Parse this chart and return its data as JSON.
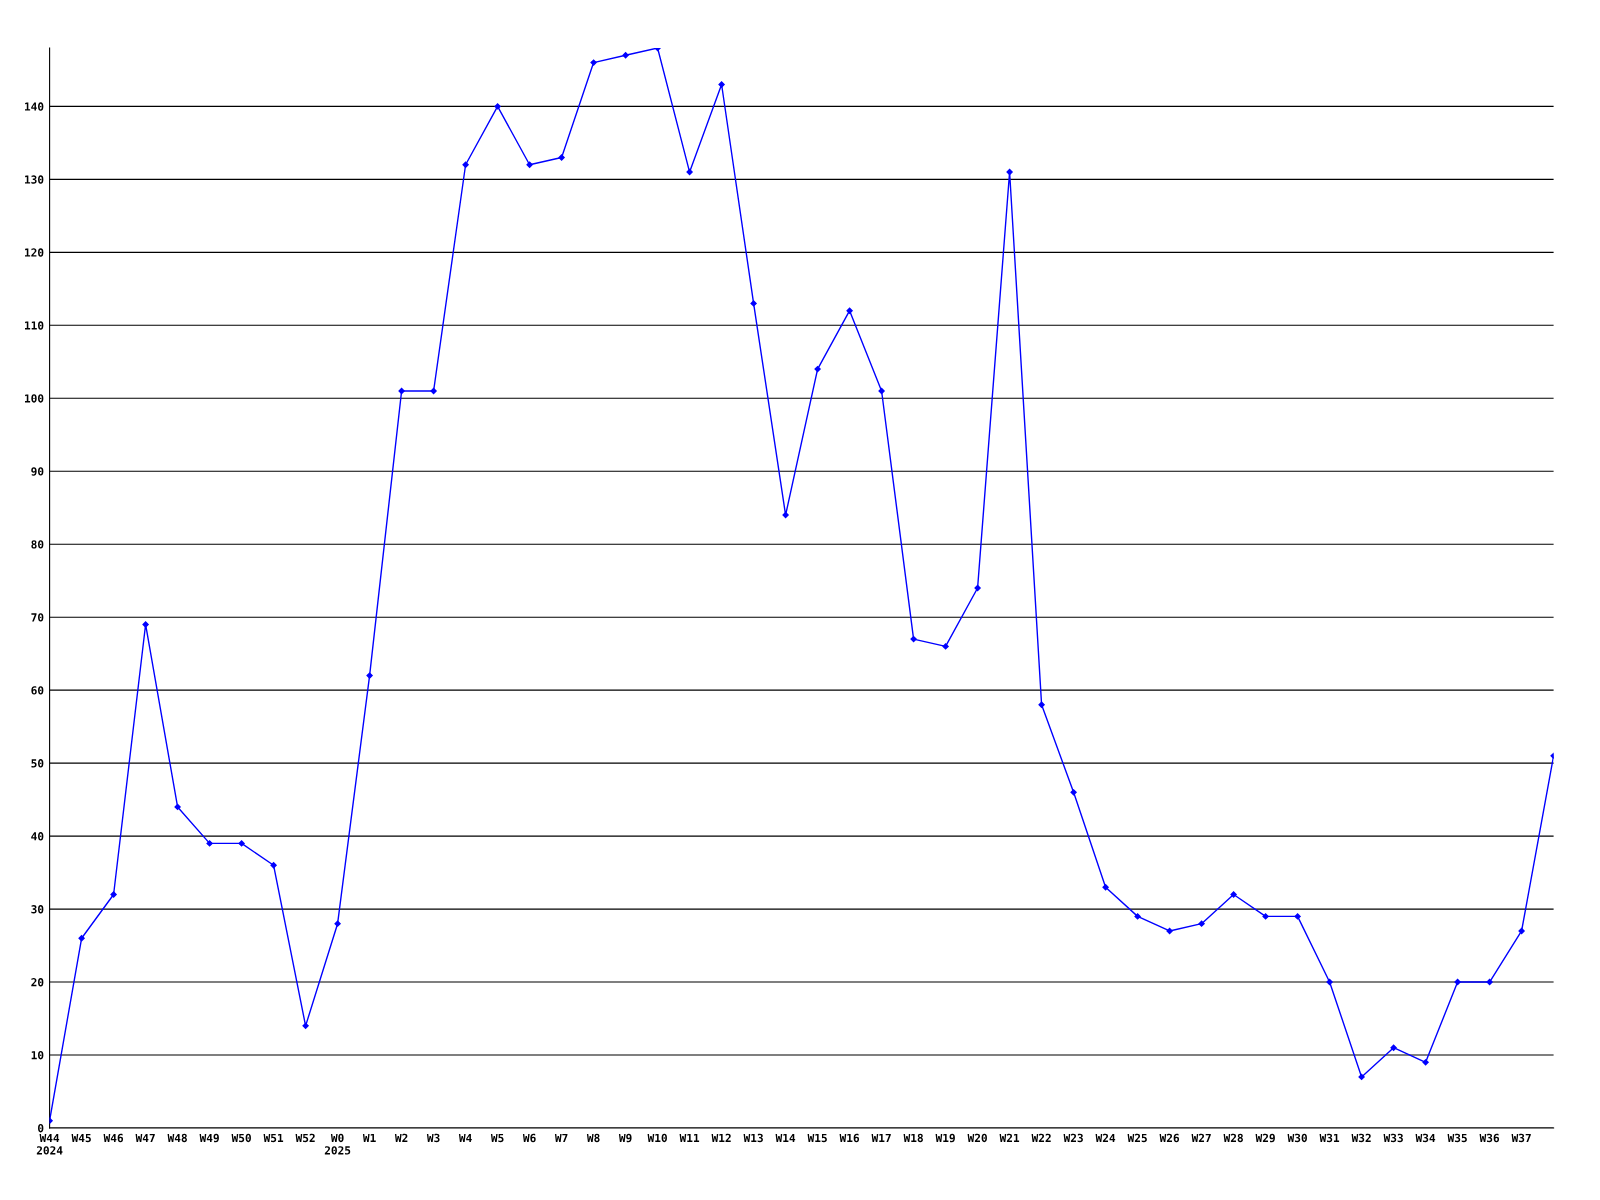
{
  "chart_data": {
    "type": "line",
    "categories": [
      "W44\n2024",
      "W45",
      "W46",
      "W47",
      "W48",
      "W49",
      "W50",
      "W51",
      "W52",
      "W0\n2025",
      "W1",
      "W2",
      "W3",
      "W4",
      "W5",
      "W6",
      "W7",
      "W8",
      "W9",
      "W10",
      "W11",
      "W12",
      "W13",
      "W14",
      "W15",
      "W16",
      "W17",
      "W18",
      "W19",
      "W20",
      "W21",
      "W22",
      "W23",
      "W24",
      "W25",
      "W26",
      "W27",
      "W28",
      "W29",
      "W30",
      "W31",
      "W32",
      "W33",
      "W34",
      "W35",
      "W36",
      "W37",
      null
    ],
    "series": [
      {
        "color": "#0000ff",
        "values": [
          1,
          26,
          32,
          69,
          44,
          39,
          39,
          36,
          14,
          28,
          62,
          101,
          101,
          132,
          140,
          132,
          133,
          146,
          147,
          148,
          131,
          143,
          113,
          84,
          104,
          112,
          101,
          67,
          66,
          74,
          131,
          58,
          46,
          33,
          29,
          27,
          28,
          32,
          29,
          29,
          20,
          7,
          11,
          9,
          20,
          20,
          27,
          51
        ]
      }
    ],
    "ylim": [
      0,
      148
    ],
    "yticks": [
      0,
      10,
      20,
      30,
      40,
      50,
      60,
      70,
      80,
      90,
      100,
      110,
      120,
      130,
      140
    ],
    "grid": "y",
    "marker": "diamond",
    "line_style": "solid"
  }
}
